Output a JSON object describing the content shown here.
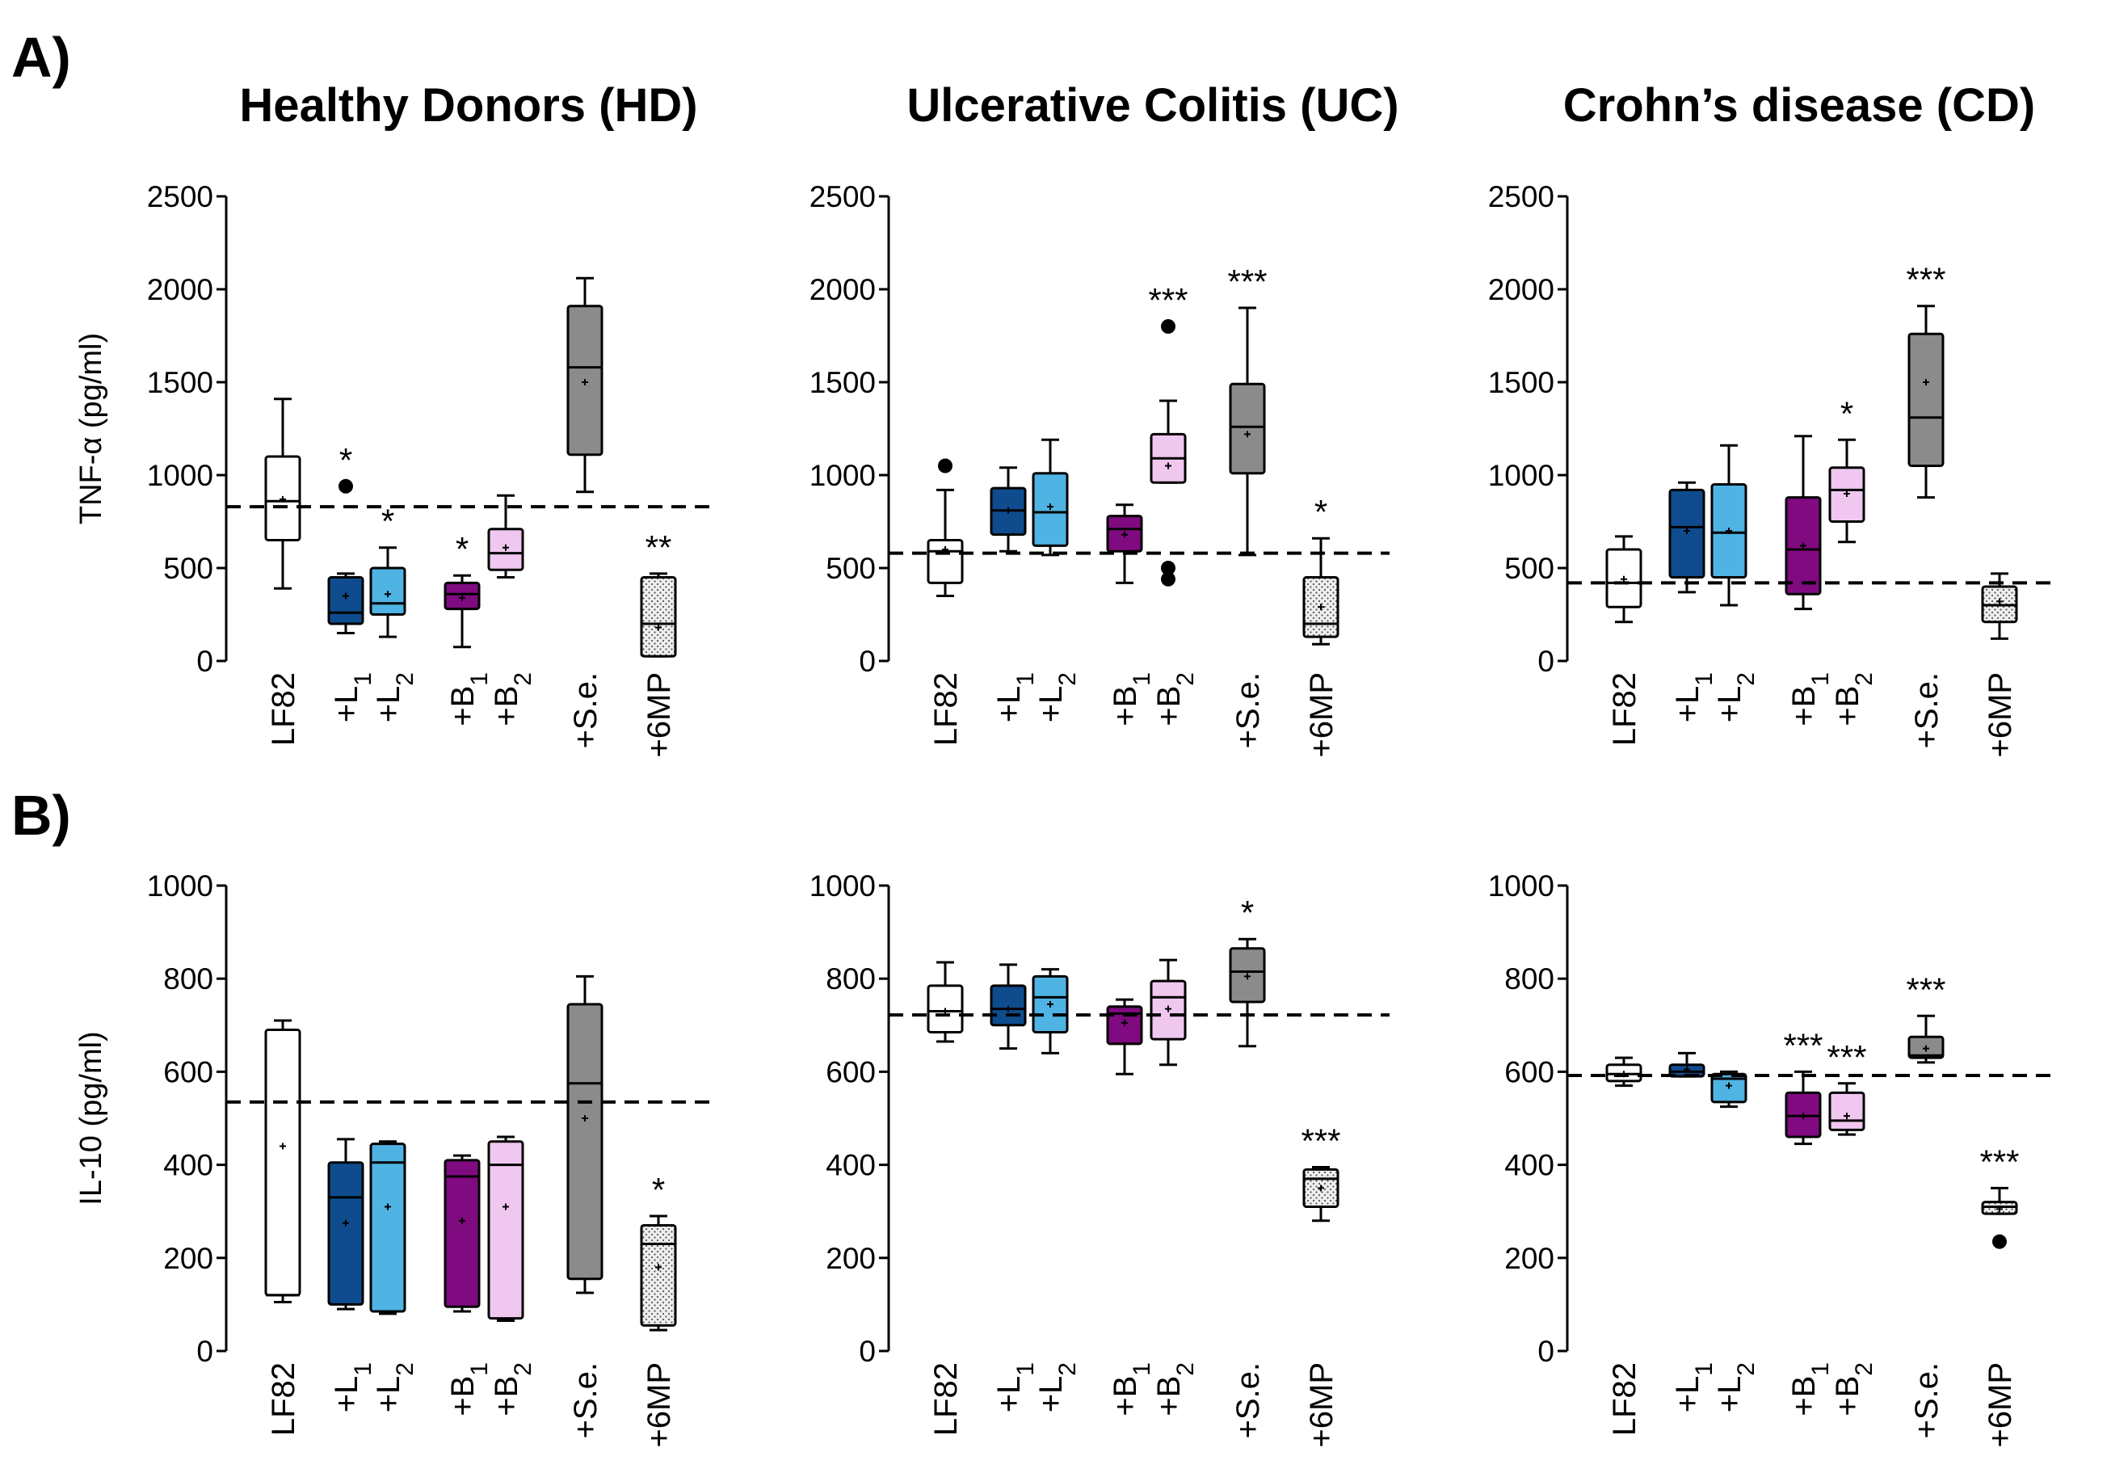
{
  "panel_labels": [
    "A)",
    "B)"
  ],
  "column_titles": [
    "Healthy Donors (HD)",
    "Ulcerative Colitis (UC)",
    "Crohn’s disease (CD)"
  ],
  "colors": {
    "LF82": "#ffffff",
    "L1": "#0f4c8e",
    "L2": "#4fb3e3",
    "B1": "#800a80",
    "B2": "#f0c7ef",
    "Se": "#8b8b8b",
    "6MP": "#eeeeee"
  },
  "chart_data": [
    {
      "type": "box",
      "id": "tnf-hd",
      "row": "A",
      "column": "Healthy Donors (HD)",
      "ylabel": "TNF-α (pg/ml)",
      "ylim": [
        0,
        2500
      ],
      "yticks": [
        0,
        500,
        1000,
        1500,
        2000,
        2500
      ],
      "baseline": 830,
      "groups": [
        {
          "key": "LF82",
          "label": "LF82",
          "whisker_low": 390,
          "q1": 650,
          "median": 860,
          "q3": 1100,
          "whisker_high": 1410,
          "mean": 870,
          "outliers": [],
          "sig": "",
          "color_key": "LF82"
        },
        {
          "key": "L1",
          "label": "+L1",
          "whisker_low": 150,
          "q1": 200,
          "median": 260,
          "q3": 450,
          "whisker_high": 470,
          "mean": 350,
          "outliers": [
            940
          ],
          "sig": "*",
          "color_key": "L1"
        },
        {
          "key": "L2",
          "label": "+L2",
          "whisker_low": 130,
          "q1": 250,
          "median": 310,
          "q3": 500,
          "whisker_high": 610,
          "mean": 360,
          "outliers": [],
          "sig": "*",
          "color_key": "L2"
        },
        {
          "key": "B1",
          "label": "+B1",
          "whisker_low": 75,
          "q1": 280,
          "median": 360,
          "q3": 420,
          "whisker_high": 460,
          "mean": 340,
          "outliers": [],
          "sig": "*",
          "color_key": "B1"
        },
        {
          "key": "B2",
          "label": "+B2",
          "whisker_low": 450,
          "q1": 490,
          "median": 580,
          "q3": 710,
          "whisker_high": 890,
          "mean": 610,
          "outliers": [],
          "sig": "",
          "color_key": "B2"
        },
        {
          "key": "Se",
          "label": "+S.e.",
          "whisker_low": 910,
          "q1": 1110,
          "median": 1580,
          "q3": 1910,
          "whisker_high": 2060,
          "mean": 1500,
          "outliers": [],
          "sig": "",
          "color_key": "Se"
        },
        {
          "key": "6MP",
          "label": "+6MP",
          "whisker_low": 25,
          "q1": 25,
          "median": 200,
          "q3": 450,
          "whisker_high": 470,
          "mean": 180,
          "outliers": [],
          "sig": "**",
          "color_key": "6MP"
        }
      ]
    },
    {
      "type": "box",
      "id": "tnf-uc",
      "row": "A",
      "column": "Ulcerative Colitis (UC)",
      "ylabel": "",
      "ylim": [
        0,
        2500
      ],
      "yticks": [
        0,
        500,
        1000,
        1500,
        2000,
        2500
      ],
      "baseline": 580,
      "groups": [
        {
          "key": "LF82",
          "label": "LF82",
          "whisker_low": 350,
          "q1": 420,
          "median": 590,
          "q3": 650,
          "whisker_high": 920,
          "mean": 600,
          "outliers": [
            1050
          ],
          "sig": "",
          "color_key": "LF82"
        },
        {
          "key": "L1",
          "label": "+L1",
          "whisker_low": 590,
          "q1": 680,
          "median": 810,
          "q3": 930,
          "whisker_high": 1040,
          "mean": 810,
          "outliers": [],
          "sig": "",
          "color_key": "L1"
        },
        {
          "key": "L2",
          "label": "+L2",
          "whisker_low": 570,
          "q1": 620,
          "median": 800,
          "q3": 1010,
          "whisker_high": 1190,
          "mean": 830,
          "outliers": [],
          "sig": "",
          "color_key": "L2"
        },
        {
          "key": "B1",
          "label": "+B1",
          "whisker_low": 420,
          "q1": 590,
          "median": 710,
          "q3": 780,
          "whisker_high": 840,
          "mean": 680,
          "outliers": [],
          "sig": "",
          "color_key": "B1"
        },
        {
          "key": "B2",
          "label": "+B2",
          "whisker_low": 960,
          "q1": 960,
          "median": 1090,
          "q3": 1220,
          "whisker_high": 1400,
          "mean": 1050,
          "outliers": [
            1800,
            500,
            440
          ],
          "sig": "***",
          "color_key": "B2"
        },
        {
          "key": "Se",
          "label": "+S.e.",
          "whisker_low": 570,
          "q1": 1010,
          "median": 1260,
          "q3": 1490,
          "whisker_high": 1900,
          "mean": 1220,
          "outliers": [],
          "sig": "***",
          "color_key": "Se"
        },
        {
          "key": "6MP",
          "label": "+6MP",
          "whisker_low": 90,
          "q1": 130,
          "median": 200,
          "q3": 450,
          "whisker_high": 660,
          "mean": 290,
          "outliers": [],
          "sig": "*",
          "color_key": "6MP"
        }
      ]
    },
    {
      "type": "box",
      "id": "tnf-cd",
      "row": "A",
      "column": "Crohn’s disease (CD)",
      "ylabel": "",
      "ylim": [
        0,
        2500
      ],
      "yticks": [
        0,
        500,
        1000,
        1500,
        2000,
        2500
      ],
      "baseline": 420,
      "groups": [
        {
          "key": "LF82",
          "label": "LF82",
          "whisker_low": 210,
          "q1": 290,
          "median": 420,
          "q3": 600,
          "whisker_high": 670,
          "mean": 440,
          "outliers": [],
          "sig": "",
          "color_key": "LF82"
        },
        {
          "key": "L1",
          "label": "+L1",
          "whisker_low": 370,
          "q1": 450,
          "median": 720,
          "q3": 920,
          "whisker_high": 960,
          "mean": 700,
          "outliers": [],
          "sig": "",
          "color_key": "L1"
        },
        {
          "key": "L2",
          "label": "+L2",
          "whisker_low": 300,
          "q1": 450,
          "median": 690,
          "q3": 950,
          "whisker_high": 1160,
          "mean": 700,
          "outliers": [],
          "sig": "",
          "color_key": "L2"
        },
        {
          "key": "B1",
          "label": "+B1",
          "whisker_low": 280,
          "q1": 360,
          "median": 600,
          "q3": 880,
          "whisker_high": 1210,
          "mean": 620,
          "outliers": [],
          "sig": "",
          "color_key": "B1"
        },
        {
          "key": "B2",
          "label": "+B2",
          "whisker_low": 640,
          "q1": 750,
          "median": 920,
          "q3": 1040,
          "whisker_high": 1190,
          "mean": 900,
          "outliers": [],
          "sig": "*",
          "color_key": "B2"
        },
        {
          "key": "Se",
          "label": "+S.e.",
          "whisker_low": 880,
          "q1": 1050,
          "median": 1310,
          "q3": 1760,
          "whisker_high": 1910,
          "mean": 1500,
          "outliers": [],
          "sig": "***",
          "color_key": "Se"
        },
        {
          "key": "6MP",
          "label": "+6MP",
          "whisker_low": 120,
          "q1": 210,
          "median": 300,
          "q3": 400,
          "whisker_high": 470,
          "mean": 320,
          "outliers": [],
          "sig": "",
          "color_key": "6MP"
        }
      ]
    },
    {
      "type": "box",
      "id": "il10-hd",
      "row": "B",
      "column": "Healthy Donors (HD)",
      "ylabel": "IL-10 (pg/ml)",
      "ylim": [
        0,
        1000
      ],
      "yticks": [
        0,
        200,
        400,
        600,
        800,
        1000
      ],
      "baseline": 535,
      "groups": [
        {
          "key": "LF82",
          "label": "LF82",
          "whisker_low": 105,
          "q1": 120,
          "median": 120,
          "q3": 690,
          "whisker_high": 710,
          "mean": 440,
          "outliers": [],
          "sig": "",
          "color_key": "LF82"
        },
        {
          "key": "L1",
          "label": "+L1",
          "whisker_low": 90,
          "q1": 100,
          "median": 330,
          "q3": 405,
          "whisker_high": 455,
          "mean": 275,
          "outliers": [],
          "sig": "",
          "color_key": "L1"
        },
        {
          "key": "L2",
          "label": "+L2",
          "whisker_low": 80,
          "q1": 85,
          "median": 405,
          "q3": 445,
          "whisker_high": 450,
          "mean": 310,
          "outliers": [],
          "sig": "",
          "color_key": "L2"
        },
        {
          "key": "B1",
          "label": "+B1",
          "whisker_low": 85,
          "q1": 95,
          "median": 375,
          "q3": 410,
          "whisker_high": 420,
          "mean": 280,
          "outliers": [],
          "sig": "",
          "color_key": "B1"
        },
        {
          "key": "B2",
          "label": "+B2",
          "whisker_low": 65,
          "q1": 70,
          "median": 400,
          "q3": 450,
          "whisker_high": 460,
          "mean": 310,
          "outliers": [],
          "sig": "",
          "color_key": "B2"
        },
        {
          "key": "Se",
          "label": "+S.e.",
          "whisker_low": 125,
          "q1": 155,
          "median": 575,
          "q3": 745,
          "whisker_high": 805,
          "mean": 500,
          "outliers": [],
          "sig": "",
          "color_key": "Se"
        },
        {
          "key": "6MP",
          "label": "+6MP",
          "whisker_low": 45,
          "q1": 55,
          "median": 230,
          "q3": 270,
          "whisker_high": 290,
          "mean": 180,
          "outliers": [],
          "sig": "*",
          "color_key": "6MP"
        }
      ]
    },
    {
      "type": "box",
      "id": "il10-uc",
      "row": "B",
      "column": "Ulcerative Colitis (UC)",
      "ylabel": "",
      "ylim": [
        0,
        1000
      ],
      "yticks": [
        0,
        200,
        400,
        600,
        800,
        1000
      ],
      "baseline": 722,
      "groups": [
        {
          "key": "LF82",
          "label": "LF82",
          "whisker_low": 665,
          "q1": 685,
          "median": 730,
          "q3": 785,
          "whisker_high": 835,
          "mean": 730,
          "outliers": [],
          "sig": "",
          "color_key": "LF82"
        },
        {
          "key": "L1",
          "label": "+L1",
          "whisker_low": 650,
          "q1": 700,
          "median": 735,
          "q3": 785,
          "whisker_high": 830,
          "mean": 735,
          "outliers": [],
          "sig": "",
          "color_key": "L1"
        },
        {
          "key": "L2",
          "label": "+L2",
          "whisker_low": 640,
          "q1": 685,
          "median": 760,
          "q3": 805,
          "whisker_high": 820,
          "mean": 745,
          "outliers": [],
          "sig": "",
          "color_key": "L2"
        },
        {
          "key": "B1",
          "label": "+B1",
          "whisker_low": 595,
          "q1": 660,
          "median": 725,
          "q3": 740,
          "whisker_high": 755,
          "mean": 705,
          "outliers": [],
          "sig": "",
          "color_key": "B1"
        },
        {
          "key": "B2",
          "label": "+B2",
          "whisker_low": 615,
          "q1": 670,
          "median": 760,
          "q3": 795,
          "whisker_high": 840,
          "mean": 735,
          "outliers": [],
          "sig": "",
          "color_key": "B2"
        },
        {
          "key": "Se",
          "label": "+S.e.",
          "whisker_low": 655,
          "q1": 750,
          "median": 815,
          "q3": 865,
          "whisker_high": 885,
          "mean": 805,
          "outliers": [],
          "sig": "*",
          "color_key": "Se"
        },
        {
          "key": "6MP",
          "label": "+6MP",
          "whisker_low": 280,
          "q1": 310,
          "median": 370,
          "q3": 390,
          "whisker_high": 395,
          "mean": 350,
          "outliers": [],
          "sig": "***",
          "color_key": "6MP"
        }
      ]
    },
    {
      "type": "box",
      "id": "il10-cd",
      "row": "B",
      "column": "Crohn’s disease (CD)",
      "ylabel": "",
      "ylim": [
        0,
        1000
      ],
      "yticks": [
        0,
        200,
        400,
        600,
        800,
        1000
      ],
      "baseline": 592,
      "groups": [
        {
          "key": "LF82",
          "label": "LF82",
          "whisker_low": 570,
          "q1": 580,
          "median": 595,
          "q3": 615,
          "whisker_high": 630,
          "mean": 595,
          "outliers": [],
          "sig": "",
          "color_key": "LF82"
        },
        {
          "key": "L1",
          "label": "+L1",
          "whisker_low": 590,
          "q1": 590,
          "median": 600,
          "q3": 615,
          "whisker_high": 640,
          "mean": 605,
          "outliers": [],
          "sig": "",
          "color_key": "L1"
        },
        {
          "key": "L2",
          "label": "+L2",
          "whisker_low": 525,
          "q1": 535,
          "median": 585,
          "q3": 595,
          "whisker_high": 600,
          "mean": 570,
          "outliers": [],
          "sig": "",
          "color_key": "L2"
        },
        {
          "key": "B1",
          "label": "+B1",
          "whisker_low": 445,
          "q1": 460,
          "median": 505,
          "q3": 555,
          "whisker_high": 600,
          "mean": 505,
          "outliers": [],
          "sig": "***",
          "color_key": "B1"
        },
        {
          "key": "B2",
          "label": "+B2",
          "whisker_low": 465,
          "q1": 475,
          "median": 495,
          "q3": 555,
          "whisker_high": 575,
          "mean": 505,
          "outliers": [],
          "sig": "***",
          "color_key": "B2"
        },
        {
          "key": "Se",
          "label": "+S.e.",
          "whisker_low": 620,
          "q1": 630,
          "median": 635,
          "q3": 675,
          "whisker_high": 720,
          "mean": 650,
          "outliers": [],
          "sig": "***",
          "color_key": "Se"
        },
        {
          "key": "6MP",
          "label": "+6MP",
          "whisker_low": 295,
          "q1": 295,
          "median": 310,
          "q3": 320,
          "whisker_high": 350,
          "mean": 305,
          "outliers": [
            235
          ],
          "sig": "***",
          "color_key": "6MP"
        }
      ]
    }
  ]
}
